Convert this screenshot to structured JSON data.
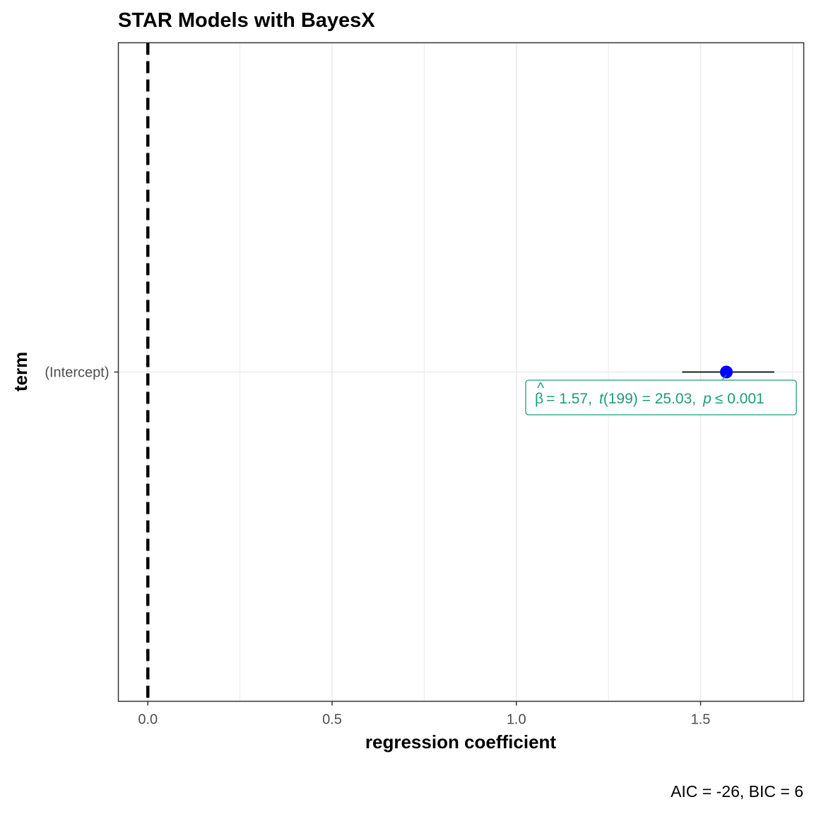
{
  "chart_data": {
    "type": "scatter",
    "title": "STAR Models with BayesX",
    "xlabel": "regression coefficient",
    "ylabel": "term",
    "xlim": [
      -0.08,
      1.78
    ],
    "xticks": [
      0.0,
      0.5,
      1.0,
      1.5
    ],
    "xtick_labels": [
      "0.0",
      "0.5",
      "1.0",
      "1.5"
    ],
    "categories": [
      "(Intercept)"
    ],
    "points": [
      {
        "term": "(Intercept)",
        "estimate": 1.57,
        "conf_low": 1.45,
        "conf_high": 1.7
      }
    ],
    "reference_line": {
      "x": 0,
      "style": "dashed"
    },
    "annotation": {
      "beta_symbol": "β",
      "beta_value": "= 1.57,",
      "t_label": "t",
      "t_df": "(199) = 25.03,",
      "p_label": "p",
      "p_value": "≤ 0.001"
    },
    "caption": "AIC = -26, BIC = 6",
    "grid": true,
    "colors": {
      "point": "#0000ff",
      "annotation": "#1b9e77",
      "grid": "#ebebeb",
      "frame": "#333333"
    }
  }
}
